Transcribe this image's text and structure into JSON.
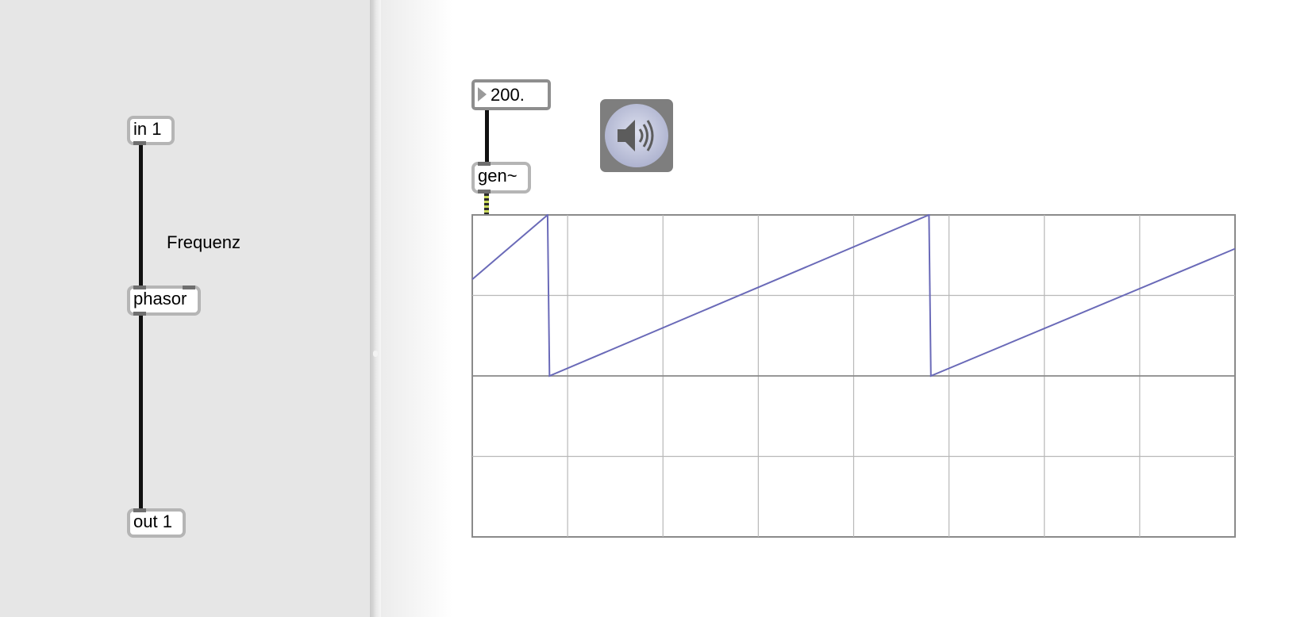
{
  "subpatcher": {
    "inlet_label": "in 1",
    "phasor_label": "phasor",
    "outlet_label": "out 1",
    "comment": "Frequenz"
  },
  "main": {
    "number_value": "200.",
    "gen_label": "gen~",
    "speaker_icon": "speaker-icon"
  },
  "colors": {
    "waveform": "#6a6ab8",
    "grid": "#b8b8b8",
    "panel": "#e6e6e6",
    "dac_bg": "#7e7e7e"
  },
  "chart_data": {
    "type": "line",
    "title": "",
    "xlabel": "",
    "ylabel": "",
    "ylim": [
      -1,
      1
    ],
    "xlim": [
      0,
      8
    ],
    "grid": true,
    "grid_divisions_x": 8,
    "grid_divisions_y": 4,
    "series": [
      {
        "x": [
          0,
          0.79,
          0.81,
          4.79,
          4.81,
          8.0
        ],
        "y": [
          0.6,
          1.0,
          0.0,
          1.0,
          0.0,
          0.79
        ]
      }
    ]
  }
}
